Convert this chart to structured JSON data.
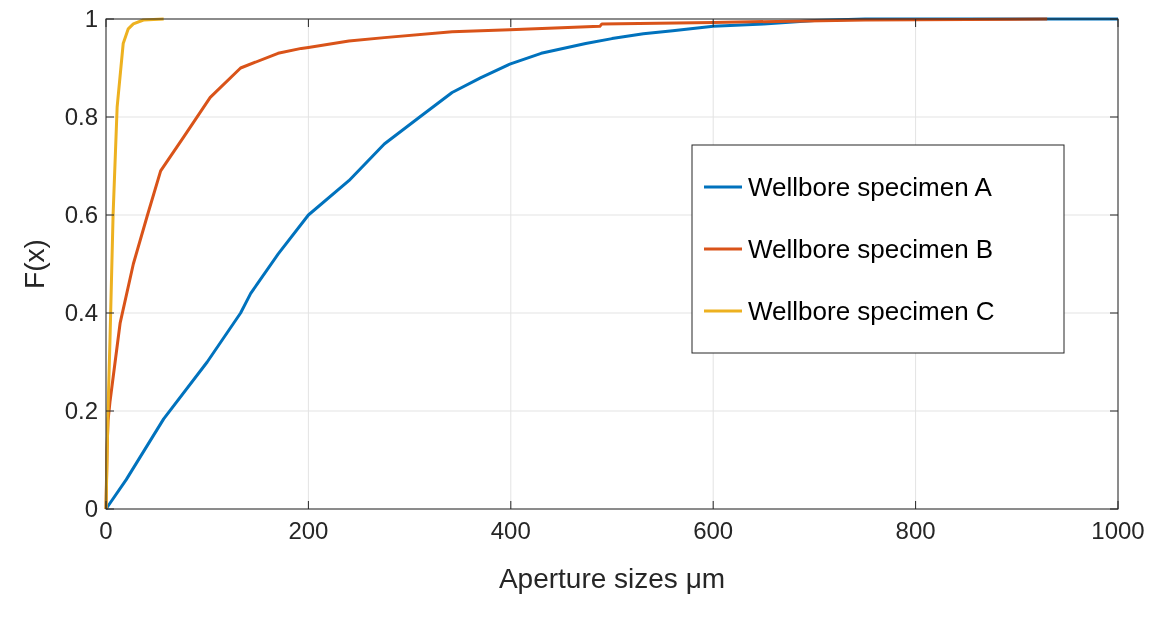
{
  "chart_data": {
    "type": "line",
    "xlabel": "Aperture sizes μm",
    "ylabel": "F(x)",
    "xlim": [
      0,
      1000
    ],
    "ylim": [
      0,
      1
    ],
    "xticks": [
      0,
      200,
      400,
      600,
      800,
      1000
    ],
    "yticks": [
      0,
      0.2,
      0.4,
      0.6,
      0.8,
      1
    ],
    "grid": true,
    "legend": "right",
    "line_style": "solid",
    "series": [
      {
        "name": "Wellbore specimen A",
        "color": "#0072bd",
        "x": [
          0,
          20,
          57,
          100,
          133,
          143,
          170,
          200,
          240,
          275,
          310,
          342,
          370,
          399,
          430,
          474,
          500,
          531,
          560,
          600,
          650,
          700,
          750,
          800,
          1000
        ],
        "values": [
          0,
          0.06,
          0.184,
          0.3,
          0.4,
          0.44,
          0.52,
          0.6,
          0.67,
          0.745,
          0.8,
          0.85,
          0.88,
          0.908,
          0.93,
          0.95,
          0.96,
          0.97,
          0.976,
          0.985,
          0.99,
          0.997,
          1,
          1,
          1
        ]
      },
      {
        "name": "Wellbore specimen B",
        "color": "#d95319",
        "x": [
          0,
          1,
          2,
          4,
          14,
          27,
          41,
          54,
          77,
          103,
          133,
          170,
          193,
          200,
          240,
          275,
          342,
          399,
          450,
          488,
          490,
          600,
          750,
          930
        ],
        "values": [
          0,
          0.12,
          0.18,
          0.22,
          0.38,
          0.5,
          0.6,
          0.69,
          0.76,
          0.84,
          0.9,
          0.93,
          0.94,
          0.942,
          0.955,
          0.962,
          0.974,
          0.978,
          0.982,
          0.985,
          0.99,
          0.993,
          0.998,
          1
        ]
      },
      {
        "name": "Wellbore specimen C",
        "color": "#edb120",
        "x": [
          0,
          2,
          4,
          7,
          11,
          17,
          22,
          27,
          37,
          57
        ],
        "values": [
          0,
          0.2,
          0.35,
          0.6,
          0.82,
          0.95,
          0.98,
          0.99,
          0.998,
          1
        ]
      }
    ]
  }
}
